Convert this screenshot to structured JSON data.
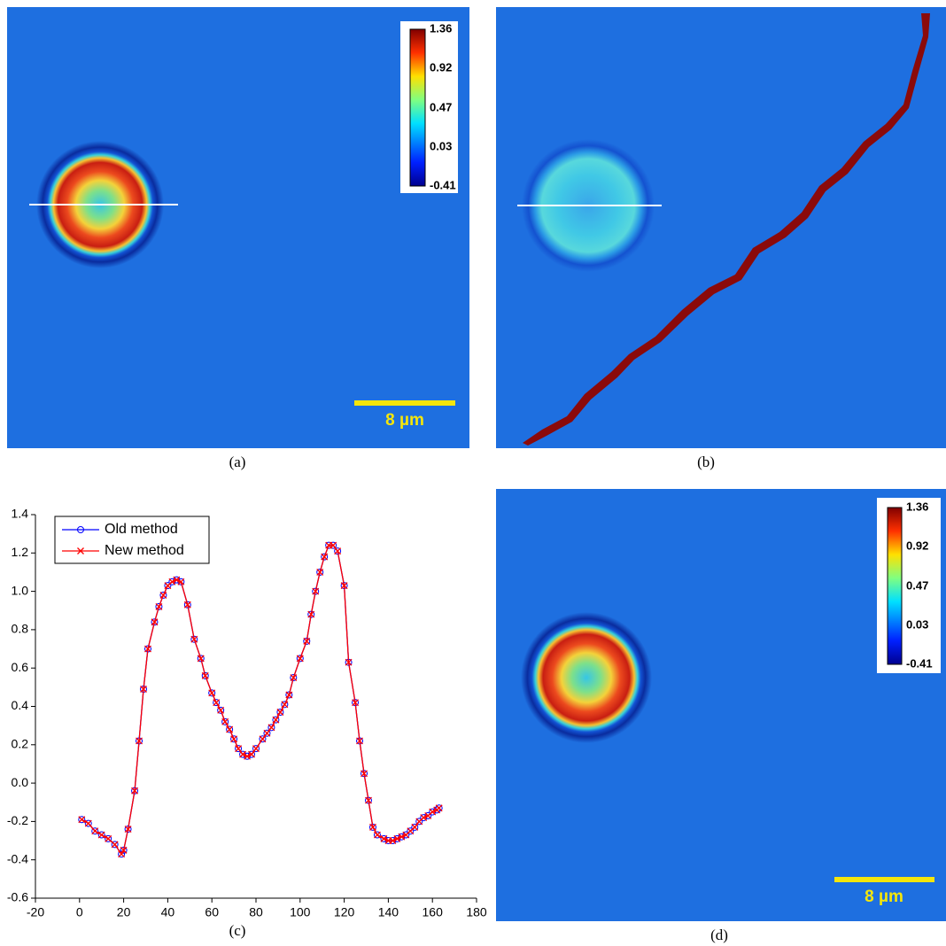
{
  "images": [
    {
      "caption": "(a)",
      "colorbar": [
        1.36,
        0.92,
        0.47,
        0.03,
        -0.41
      ],
      "scale_bar": "8 µm"
    },
    {
      "caption": "(b)"
    },
    {
      "caption": "(d)",
      "colorbar": [
        1.36,
        0.92,
        0.47,
        0.03,
        -0.41
      ],
      "scale_bar": "8 µm"
    }
  ],
  "chart_data": {
    "type": "line",
    "caption": "(c)",
    "x": [
      1,
      4,
      7,
      10,
      13,
      16,
      19,
      20,
      22,
      25,
      27,
      29,
      31,
      34,
      36,
      38,
      40,
      42,
      44,
      46,
      49,
      52,
      55,
      57,
      60,
      62,
      64,
      66,
      68,
      70,
      72,
      74,
      76,
      78,
      80,
      83,
      85,
      87,
      89,
      91,
      93,
      95,
      97,
      100,
      103,
      105,
      107,
      109,
      111,
      113,
      115,
      117,
      120,
      122,
      125,
      127,
      129,
      131,
      133,
      135,
      138,
      140,
      142,
      144,
      146,
      148,
      150,
      152,
      154,
      156,
      158,
      160,
      162,
      163
    ],
    "series": [
      {
        "name": "Old method",
        "color": "#0000ff",
        "marker": "circle",
        "values": [
          -0.19,
          -0.21,
          -0.25,
          -0.27,
          -0.29,
          -0.32,
          -0.37,
          -0.35,
          -0.24,
          -0.04,
          0.22,
          0.49,
          0.7,
          0.84,
          0.92,
          0.98,
          1.03,
          1.05,
          1.06,
          1.05,
          0.93,
          0.75,
          0.65,
          0.56,
          0.47,
          0.42,
          0.38,
          0.32,
          0.28,
          0.23,
          0.18,
          0.15,
          0.14,
          0.15,
          0.18,
          0.23,
          0.26,
          0.29,
          0.33,
          0.37,
          0.41,
          0.46,
          0.55,
          0.65,
          0.74,
          0.88,
          1.0,
          1.1,
          1.18,
          1.24,
          1.24,
          1.21,
          1.03,
          0.63,
          0.42,
          0.22,
          0.05,
          -0.09,
          -0.23,
          -0.27,
          -0.29,
          -0.3,
          -0.3,
          -0.29,
          -0.28,
          -0.27,
          -0.25,
          -0.23,
          -0.2,
          -0.18,
          -0.17,
          -0.15,
          -0.14,
          -0.13
        ]
      },
      {
        "name": "New method",
        "color": "#ff0000",
        "marker": "x",
        "values": [
          -0.19,
          -0.21,
          -0.25,
          -0.27,
          -0.29,
          -0.32,
          -0.37,
          -0.35,
          -0.24,
          -0.04,
          0.22,
          0.49,
          0.7,
          0.84,
          0.92,
          0.98,
          1.03,
          1.05,
          1.06,
          1.05,
          0.93,
          0.75,
          0.65,
          0.56,
          0.47,
          0.42,
          0.38,
          0.32,
          0.28,
          0.23,
          0.18,
          0.15,
          0.14,
          0.15,
          0.18,
          0.23,
          0.26,
          0.29,
          0.33,
          0.37,
          0.41,
          0.46,
          0.55,
          0.65,
          0.74,
          0.88,
          1.0,
          1.1,
          1.18,
          1.24,
          1.24,
          1.21,
          1.03,
          0.63,
          0.42,
          0.22,
          0.05,
          -0.09,
          -0.23,
          -0.27,
          -0.29,
          -0.3,
          -0.3,
          -0.29,
          -0.28,
          -0.27,
          -0.25,
          -0.23,
          -0.2,
          -0.18,
          -0.17,
          -0.15,
          -0.14,
          -0.13
        ]
      }
    ],
    "xlim": [
      -20,
      180
    ],
    "xticks": [
      -20,
      0,
      20,
      40,
      60,
      80,
      100,
      120,
      140,
      160,
      180
    ],
    "ylim": [
      -0.6,
      1.4
    ],
    "yticks": [
      -0.6,
      -0.4,
      -0.2,
      {
        "value": 0,
        "label": "0.0"
      },
      0.2,
      0.4,
      0.6,
      0.8,
      {
        "value": 1,
        "label": "1.0"
      },
      1.2,
      1.4
    ],
    "legend": "upper-left"
  }
}
